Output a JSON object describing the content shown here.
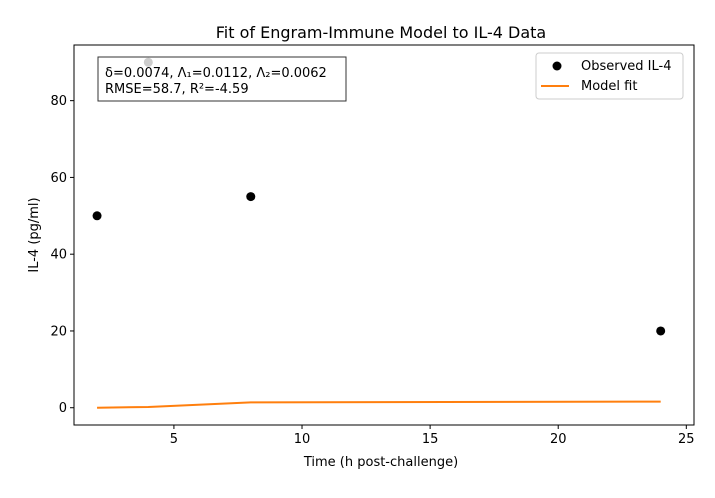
{
  "chart_data": {
    "type": "line",
    "title": "Fit of Engram-Immune Model to IL-4 Data",
    "xlabel": "Time (h post-challenge)",
    "ylabel": "IL-4 (pg/ml)",
    "xlim": [
      1.1,
      25.3
    ],
    "ylim": [
      -4.5,
      94.5
    ],
    "xticks": [
      5,
      10,
      15,
      20,
      25
    ],
    "yticks": [
      0,
      20,
      40,
      60,
      80
    ],
    "grid": false,
    "legend": "upper-right",
    "legend_entries": [
      "Observed IL-4",
      "Model fit"
    ],
    "annotation_lines": [
      "δ=0.0074, Λ₁=0.0112, Λ₂=0.0062",
      "RMSE=58.7, R²=-4.59"
    ],
    "series": [
      {
        "name": "Observed IL-4",
        "kind": "scatter",
        "color": "#000000",
        "x": [
          2,
          4,
          8,
          24
        ],
        "y": [
          50,
          90,
          55,
          20
        ]
      },
      {
        "name": "Model fit",
        "kind": "line",
        "color": "#ff7f0e",
        "x": [
          2,
          4,
          8,
          24
        ],
        "y": [
          0.0,
          0.2,
          1.4,
          1.6
        ]
      }
    ]
  }
}
